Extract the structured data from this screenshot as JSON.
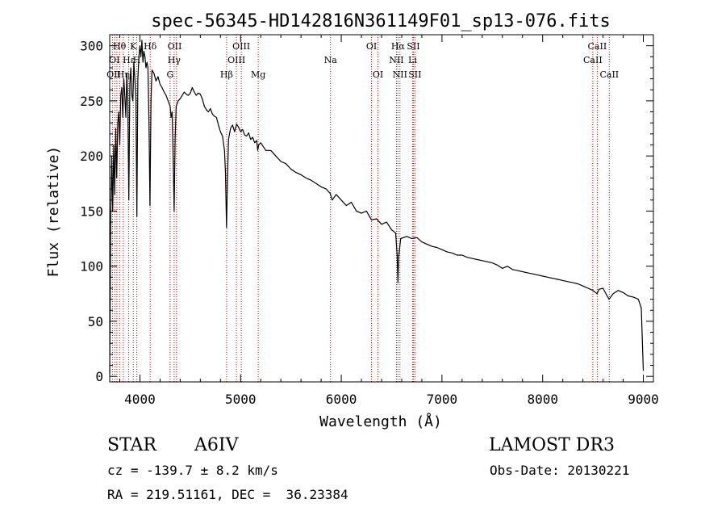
{
  "chart_data": {
    "type": "line",
    "title": "spec-56345-HD142816N361149F01_sp13-076.fits",
    "xlabel": "Wavelength (Å)",
    "ylabel": "Flux (relative)",
    "xlim": [
      3700,
      9100
    ],
    "ylim": [
      -5,
      310
    ],
    "xticks": [
      4000,
      5000,
      6000,
      7000,
      8000,
      9000
    ],
    "yticks": [
      0,
      50,
      100,
      150,
      200,
      250,
      300
    ],
    "x_tick_labels": [
      "4000",
      "5000",
      "6000",
      "7000",
      "8000",
      "9000"
    ],
    "y_tick_labels": [
      "0",
      "50",
      "100",
      "150",
      "200",
      "250",
      "300"
    ],
    "series": [
      {
        "name": "flux",
        "color": "#000000",
        "points": [
          [
            3700,
            2
          ],
          [
            3710,
            140
          ],
          [
            3720,
            200
          ],
          [
            3730,
            150
          ],
          [
            3740,
            210
          ],
          [
            3750,
            165
          ],
          [
            3760,
            225
          ],
          [
            3770,
            180
          ],
          [
            3780,
            230
          ],
          [
            3790,
            240
          ],
          [
            3800,
            210
          ],
          [
            3810,
            255
          ],
          [
            3820,
            262
          ],
          [
            3830,
            235
          ],
          [
            3840,
            270
          ],
          [
            3850,
            255
          ],
          [
            3860,
            235
          ],
          [
            3870,
            275
          ],
          [
            3880,
            245
          ],
          [
            3890,
            160
          ],
          [
            3900,
            265
          ],
          [
            3910,
            280
          ],
          [
            3920,
            255
          ],
          [
            3930,
            250
          ],
          [
            3940,
            285
          ],
          [
            3950,
            270
          ],
          [
            3960,
            250
          ],
          [
            3970,
            145
          ],
          [
            3980,
            270
          ],
          [
            3990,
            290
          ],
          [
            4000,
            300
          ],
          [
            4010,
            290
          ],
          [
            4020,
            305
          ],
          [
            4030,
            285
          ],
          [
            4040,
            295
          ],
          [
            4050,
            290
          ],
          [
            4060,
            280
          ],
          [
            4070,
            285
          ],
          [
            4080,
            280
          ],
          [
            4090,
            230
          ],
          [
            4100,
            155
          ],
          [
            4110,
            250
          ],
          [
            4120,
            278
          ],
          [
            4140,
            275
          ],
          [
            4160,
            268
          ],
          [
            4180,
            272
          ],
          [
            4200,
            265
          ],
          [
            4220,
            262
          ],
          [
            4240,
            258
          ],
          [
            4260,
            255
          ],
          [
            4280,
            250
          ],
          [
            4300,
            245
          ],
          [
            4310,
            235
          ],
          [
            4320,
            240
          ],
          [
            4330,
            200
          ],
          [
            4340,
            150
          ],
          [
            4350,
            215
          ],
          [
            4360,
            245
          ],
          [
            4380,
            250
          ],
          [
            4400,
            252
          ],
          [
            4420,
            255
          ],
          [
            4440,
            258
          ],
          [
            4460,
            256
          ],
          [
            4480,
            255
          ],
          [
            4500,
            257
          ],
          [
            4520,
            262
          ],
          [
            4540,
            258
          ],
          [
            4560,
            255
          ],
          [
            4580,
            257
          ],
          [
            4600,
            256
          ],
          [
            4620,
            252
          ],
          [
            4640,
            245
          ],
          [
            4660,
            242
          ],
          [
            4680,
            240
          ],
          [
            4700,
            243
          ],
          [
            4720,
            238
          ],
          [
            4740,
            236
          ],
          [
            4760,
            235
          ],
          [
            4780,
            228
          ],
          [
            4800,
            222
          ],
          [
            4820,
            218
          ],
          [
            4840,
            205
          ],
          [
            4850,
            185
          ],
          [
            4860,
            135
          ],
          [
            4870,
            180
          ],
          [
            4880,
            215
          ],
          [
            4900,
            225
          ],
          [
            4920,
            228
          ],
          [
            4940,
            222
          ],
          [
            4960,
            229
          ],
          [
            4980,
            226
          ],
          [
            5000,
            222
          ],
          [
            5020,
            224
          ],
          [
            5040,
            219
          ],
          [
            5060,
            218
          ],
          [
            5080,
            221
          ],
          [
            5100,
            215
          ],
          [
            5120,
            217
          ],
          [
            5140,
            212
          ],
          [
            5160,
            214
          ],
          [
            5170,
            205
          ],
          [
            5180,
            210
          ],
          [
            5200,
            212
          ],
          [
            5250,
            205
          ],
          [
            5300,
            205
          ],
          [
            5350,
            200
          ],
          [
            5400,
            195
          ],
          [
            5450,
            193
          ],
          [
            5500,
            188
          ],
          [
            5550,
            185
          ],
          [
            5600,
            183
          ],
          [
            5650,
            180
          ],
          [
            5700,
            178
          ],
          [
            5750,
            175
          ],
          [
            5800,
            172
          ],
          [
            5850,
            170
          ],
          [
            5890,
            166
          ],
          [
            5910,
            160
          ],
          [
            5950,
            165
          ],
          [
            6000,
            160
          ],
          [
            6050,
            155
          ],
          [
            6100,
            158
          ],
          [
            6150,
            150
          ],
          [
            6200,
            148
          ],
          [
            6250,
            150
          ],
          [
            6300,
            142
          ],
          [
            6350,
            143
          ],
          [
            6400,
            138
          ],
          [
            6450,
            140
          ],
          [
            6500,
            133
          ],
          [
            6540,
            130
          ],
          [
            6555,
            110
          ],
          [
            6563,
            85
          ],
          [
            6570,
            108
          ],
          [
            6590,
            125
          ],
          [
            6650,
            127
          ],
          [
            6700,
            125
          ],
          [
            6750,
            126
          ],
          [
            6800,
            122
          ],
          [
            6850,
            120
          ],
          [
            6900,
            118
          ],
          [
            6950,
            117
          ],
          [
            7000,
            115
          ],
          [
            7050,
            113
          ],
          [
            7100,
            112
          ],
          [
            7150,
            110
          ],
          [
            7200,
            110
          ],
          [
            7250,
            108
          ],
          [
            7300,
            107
          ],
          [
            7350,
            106
          ],
          [
            7400,
            105
          ],
          [
            7450,
            104
          ],
          [
            7500,
            103
          ],
          [
            7550,
            101
          ],
          [
            7600,
            98
          ],
          [
            7650,
            100
          ],
          [
            7700,
            97
          ],
          [
            7750,
            96
          ],
          [
            7800,
            95
          ],
          [
            7850,
            94
          ],
          [
            7900,
            93
          ],
          [
            7950,
            92
          ],
          [
            8000,
            91
          ],
          [
            8050,
            90
          ],
          [
            8100,
            89
          ],
          [
            8150,
            88
          ],
          [
            8200,
            87
          ],
          [
            8250,
            86
          ],
          [
            8300,
            85
          ],
          [
            8350,
            84
          ],
          [
            8400,
            82
          ],
          [
            8450,
            80
          ],
          [
            8500,
            78
          ],
          [
            8540,
            75
          ],
          [
            8560,
            79
          ],
          [
            8600,
            80
          ],
          [
            8640,
            73
          ],
          [
            8660,
            70
          ],
          [
            8700,
            75
          ],
          [
            8750,
            78
          ],
          [
            8800,
            76
          ],
          [
            8850,
            73
          ],
          [
            8900,
            72
          ],
          [
            8950,
            70
          ],
          [
            8980,
            62
          ],
          [
            9000,
            5
          ]
        ]
      }
    ],
    "line_markers": {
      "color": "#cc0000",
      "positions": [
        3727,
        3750,
        3771,
        3798,
        3835,
        3889,
        3934,
        3969,
        4102,
        4300,
        4340,
        4363,
        4861,
        4959,
        5007,
        5175,
        5893,
        6300,
        6364,
        6548,
        6563,
        6583,
        6708,
        6716,
        6731,
        8498,
        8542,
        8662
      ]
    },
    "line_labels": [
      {
        "text": "Hθ",
        "x": 3797,
        "row": 1
      },
      {
        "text": "K",
        "x": 3934,
        "row": 1
      },
      {
        "text": "Hδ",
        "x": 4102,
        "row": 1
      },
      {
        "text": "OII",
        "x": 4345,
        "row": 1
      },
      {
        "text": "OIII",
        "x": 5007,
        "row": 1
      },
      {
        "text": "OI",
        "x": 6300,
        "row": 1
      },
      {
        "text": "Hα",
        "x": 6563,
        "row": 1
      },
      {
        "text": "SII",
        "x": 6716,
        "row": 1
      },
      {
        "text": "CaII",
        "x": 8542,
        "row": 1
      },
      {
        "text": "OI",
        "x": 3747,
        "row": 2
      },
      {
        "text": "Hε",
        "x": 3890,
        "row": 2
      },
      {
        "text": "H",
        "x": 3969,
        "row": 2
      },
      {
        "text": "Hγ",
        "x": 4340,
        "row": 2
      },
      {
        "text": "OIII",
        "x": 4959,
        "row": 2
      },
      {
        "text": "Na",
        "x": 5893,
        "row": 2
      },
      {
        "text": "NII",
        "x": 6548,
        "row": 2
      },
      {
        "text": "Li",
        "x": 6708,
        "row": 2
      },
      {
        "text": "CaII",
        "x": 8498,
        "row": 2
      },
      {
        "text": "OII",
        "x": 3740,
        "row": 3
      },
      {
        "text": "Hη",
        "x": 3835,
        "row": 3
      },
      {
        "text": "G",
        "x": 4300,
        "row": 3
      },
      {
        "text": "Hβ",
        "x": 4861,
        "row": 3
      },
      {
        "text": "Mg",
        "x": 5175,
        "row": 3
      },
      {
        "text": "OI",
        "x": 6364,
        "row": 3
      },
      {
        "text": "NII",
        "x": 6583,
        "row": 3
      },
      {
        "text": "SII",
        "x": 6731,
        "row": 3
      },
      {
        "text": "CaII",
        "x": 8662,
        "row": 3
      }
    ]
  },
  "info": {
    "object_class": "STAR",
    "subclass": "A6IV",
    "survey": "LAMOST DR3",
    "redshift_text": "cz = -139.7 ± 8.2 km/s",
    "obs_date_text": "Obs-Date: 20130221",
    "coords_text": "RA = 219.51161, DEC =  36.23384"
  }
}
